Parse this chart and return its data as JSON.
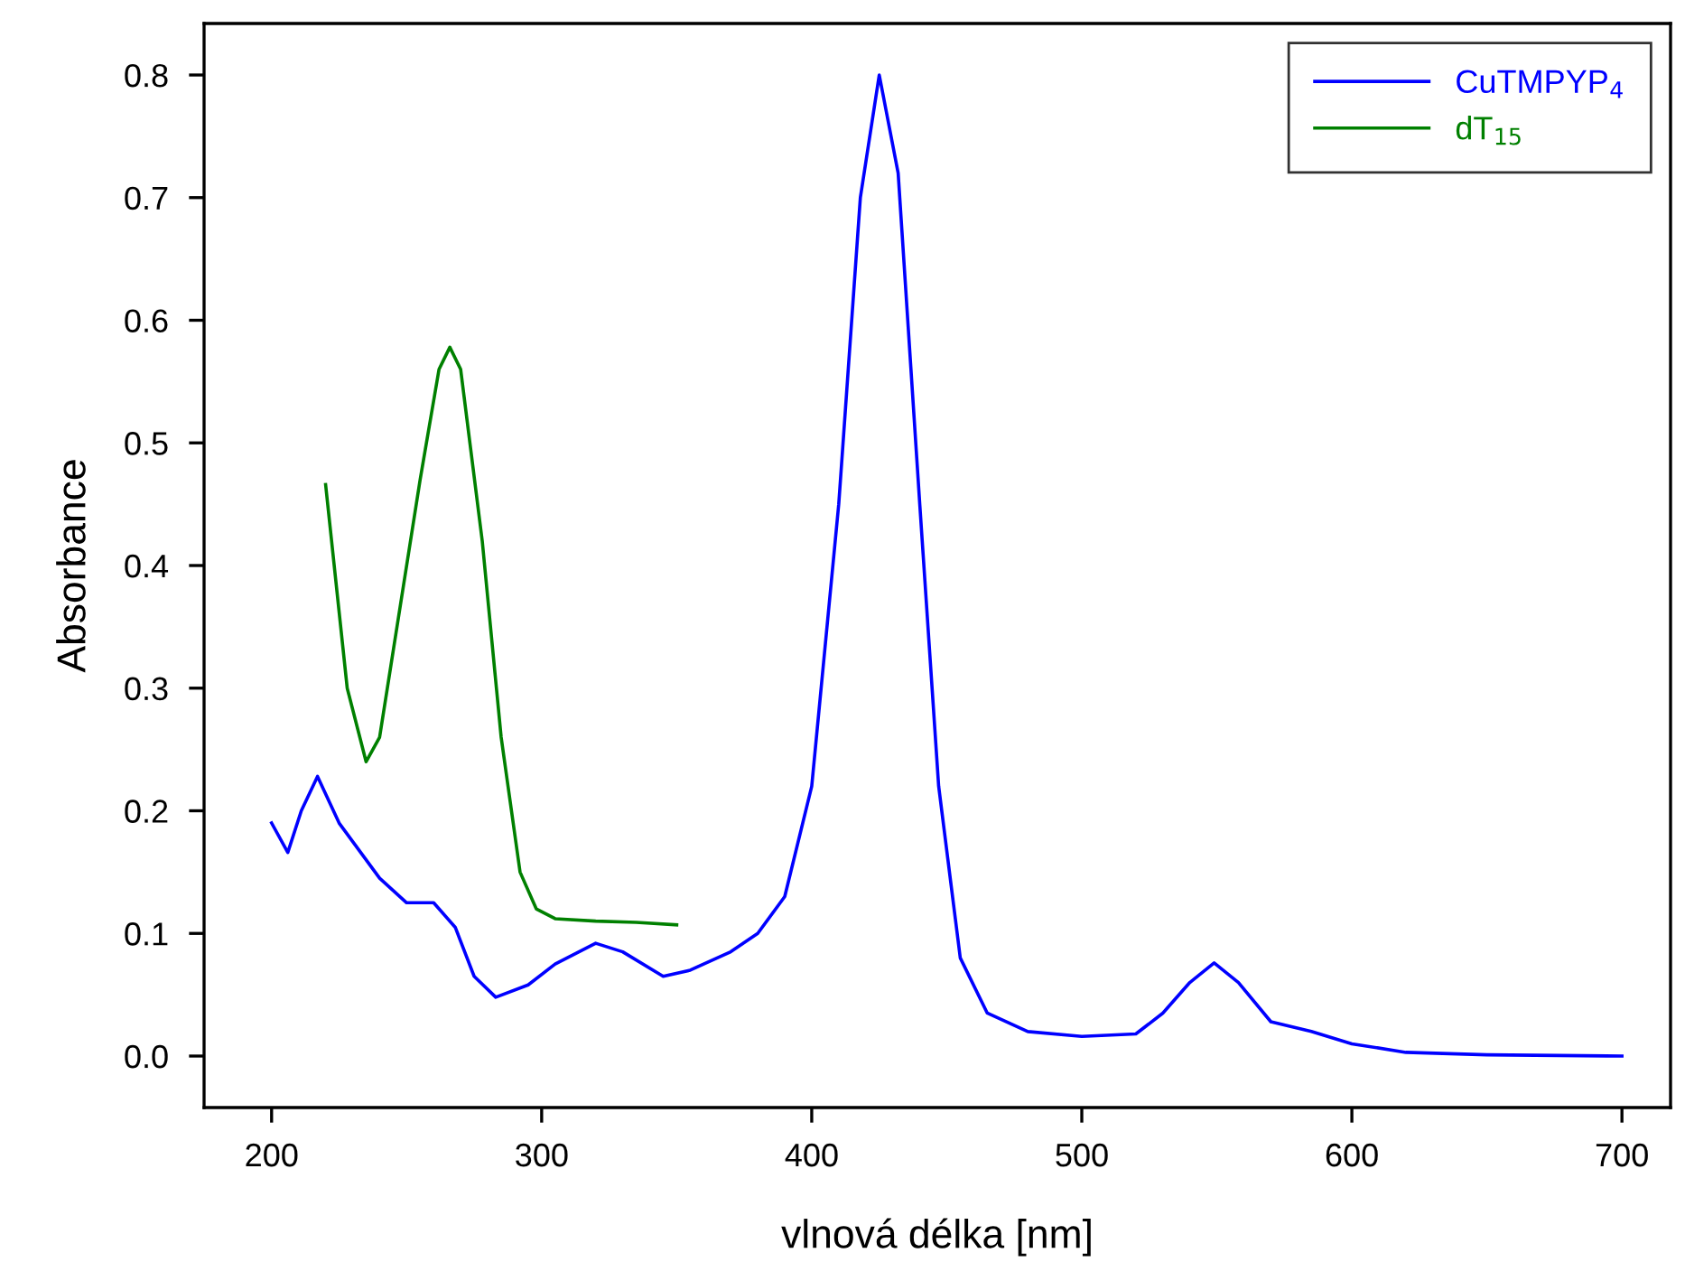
{
  "chart_data": {
    "type": "line",
    "xlabel": "vlnová délka [nm]",
    "ylabel": "Absorbance",
    "xlim": [
      175,
      718
    ],
    "xticks": [
      200,
      300,
      400,
      500,
      600,
      700
    ],
    "ylim": [
      -0.042,
      0.842
    ],
    "yticks": [
      {
        "value": 0.0,
        "label": "0.0"
      },
      0.1,
      0.2,
      0.3,
      0.4,
      0.5,
      0.6,
      0.7,
      0.8
    ],
    "grid": false,
    "legend": "top right",
    "line_style": "solid",
    "marker": "none",
    "series": [
      {
        "name": "CuTMPYP$_{4}$",
        "color": "#0000ff",
        "x": [
          200,
          206,
          211,
          217,
          225,
          240,
          250,
          260,
          268,
          275,
          283,
          295,
          305,
          320,
          330,
          345,
          355,
          370,
          380,
          390,
          400,
          410,
          418,
          425,
          432,
          440,
          447,
          455,
          465,
          480,
          500,
          520,
          530,
          540,
          549,
          558,
          570,
          585,
          600,
          620,
          650,
          700
        ],
        "values": [
          0.19,
          0.166,
          0.2,
          0.228,
          0.19,
          0.145,
          0.125,
          0.125,
          0.105,
          0.065,
          0.048,
          0.058,
          0.075,
          0.092,
          0.085,
          0.065,
          0.07,
          0.085,
          0.1,
          0.13,
          0.22,
          0.45,
          0.7,
          0.8,
          0.72,
          0.45,
          0.22,
          0.08,
          0.035,
          0.02,
          0.016,
          0.018,
          0.035,
          0.06,
          0.076,
          0.06,
          0.028,
          0.02,
          0.01,
          0.003,
          0.001,
          0.0
        ]
      },
      {
        "name": "dT$_{15}$",
        "color": "#008000",
        "x": [
          220,
          228,
          235,
          240,
          245,
          255,
          262,
          266,
          270,
          278,
          285,
          292,
          298,
          305,
          320,
          335,
          350
        ],
        "values": [
          0.466,
          0.3,
          0.24,
          0.26,
          0.33,
          0.47,
          0.56,
          0.578,
          0.56,
          0.42,
          0.26,
          0.15,
          0.12,
          0.112,
          0.11,
          0.109,
          0.107
        ]
      }
    ]
  }
}
